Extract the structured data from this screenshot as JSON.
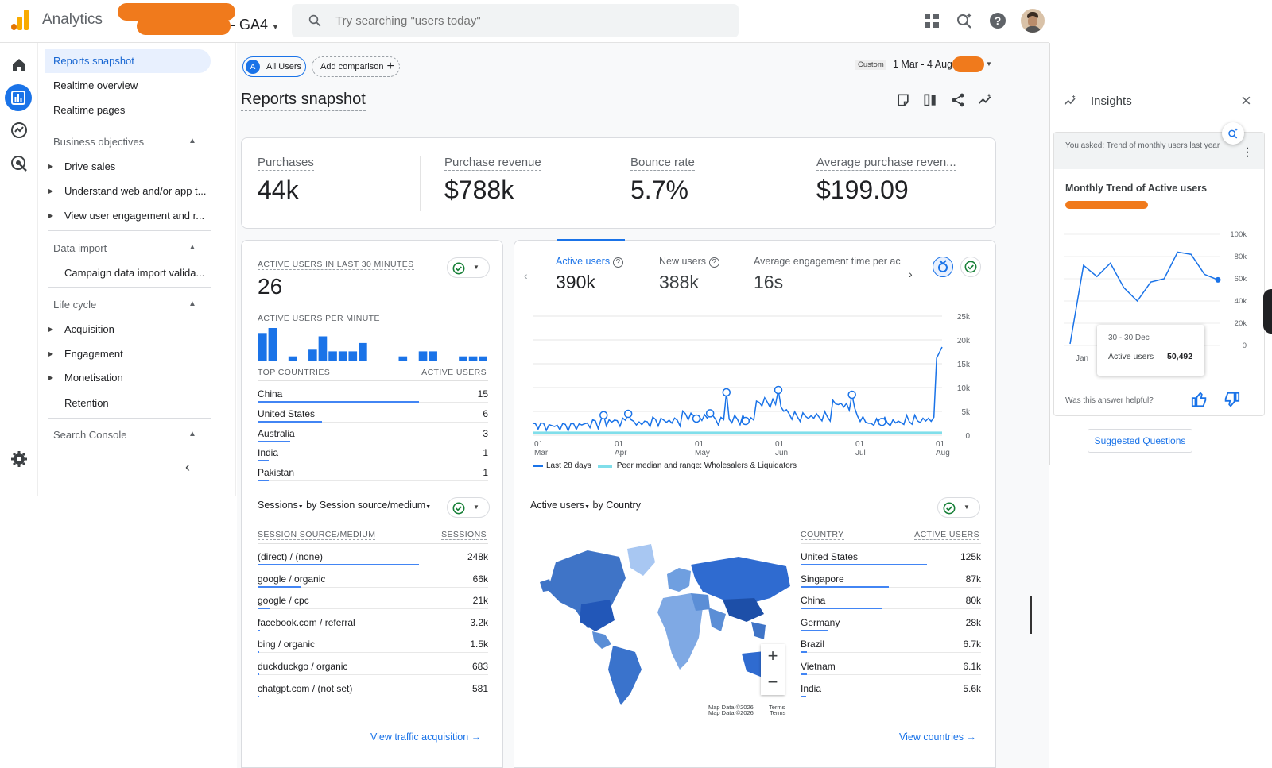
{
  "app": {
    "name": "Analytics",
    "property_suffix": "- GA4",
    "search_placeholder": "Try searching \"users today\""
  },
  "nav": {
    "top_items": [
      "Reports snapshot",
      "Realtime overview",
      "Realtime pages"
    ],
    "sections": [
      {
        "title": "Business objectives",
        "items": [
          "Drive sales",
          "Understand web and/or app t...",
          "View user engagement and r..."
        ]
      },
      {
        "title": "Data import",
        "items": [
          "Campaign data import valida..."
        ]
      },
      {
        "title": "Life cycle",
        "items": [
          "Acquisition",
          "Engagement",
          "Monetisation",
          "Retention"
        ]
      },
      {
        "title": "Search Console",
        "items": []
      }
    ]
  },
  "toolbar": {
    "segment_letter": "A",
    "segment": "All Users",
    "add_comparison": "Add comparison",
    "date_custom": "Custom",
    "date_range": "1 Mar - 4 Aug"
  },
  "page_title": "Reports snapshot",
  "kpis": [
    {
      "label": "Purchases",
      "value": "44k"
    },
    {
      "label": "Purchase revenue",
      "value": "$788k"
    },
    {
      "label": "Bounce rate",
      "value": "5.7%"
    },
    {
      "label": "Average purchase reven...",
      "value": "$199.09"
    }
  ],
  "realtime": {
    "heading": "ACTIVE USERS IN LAST 30 MINUTES",
    "value": "26",
    "per_minute": "ACTIVE USERS PER MINUTE",
    "bars": [
      0.85,
      1.0,
      0,
      0.15,
      0,
      0.35,
      0.75,
      0.3,
      0.3,
      0.3,
      0.55,
      0,
      0,
      0,
      0.15,
      0,
      0.3,
      0.3,
      0,
      0,
      0.15,
      0.15,
      0.15
    ],
    "countries_head": "TOP COUNTRIES",
    "users_head": "ACTIVE USERS",
    "countries": [
      {
        "name": "China",
        "value": "15",
        "pct": 1.0
      },
      {
        "name": "United States",
        "value": "6",
        "pct": 0.4
      },
      {
        "name": "Australia",
        "value": "3",
        "pct": 0.2
      },
      {
        "name": "India",
        "value": "1",
        "pct": 0.07
      },
      {
        "name": "Pakistan",
        "value": "1",
        "pct": 0.07
      }
    ]
  },
  "trend": {
    "tabs": [
      {
        "label": "Active users",
        "value": "390k"
      },
      {
        "label": "New users",
        "value": "388k"
      },
      {
        "label": "Average engagement time per ac",
        "value": "16s"
      }
    ],
    "y_ticks": [
      "25k",
      "20k",
      "15k",
      "10k",
      "5k",
      "0"
    ],
    "x_ticks": [
      {
        "d": "01",
        "m": "Mar"
      },
      {
        "d": "01",
        "m": "Apr"
      },
      {
        "d": "01",
        "m": "May"
      },
      {
        "d": "01",
        "m": "Jun"
      },
      {
        "d": "01",
        "m": "Jul"
      },
      {
        "d": "01",
        "m": "Aug"
      }
    ],
    "legend_last": "Last 28 days",
    "legend_peer": "Peer median and range: Wholesalers & Liquidators"
  },
  "chart_data": [
    {
      "type": "line",
      "series": [
        {
          "name": "Last 28 days",
          "x": [
            "01 Mar",
            "15 Mar",
            "01 Apr",
            "15 Apr",
            "01 May",
            "15 May",
            "01 Jun",
            "15 Jun",
            "01 Jul",
            "15 Jul",
            "01 Aug",
            "04 Aug"
          ],
          "values": [
            2000,
            1800,
            3000,
            2500,
            4500,
            3000,
            9000,
            4000,
            8500,
            2500,
            2800,
            18500
          ]
        }
      ],
      "ylim": [
        0,
        25000
      ]
    },
    {
      "type": "line",
      "title": "Monthly Trend of Active users",
      "series": [
        {
          "name": "Active users",
          "x": [
            "Jan",
            "Feb",
            "Mar",
            "Apr",
            "May",
            "Jun",
            "Jul",
            "Aug",
            "Sep",
            "Oct",
            "Nov",
            "Dec"
          ],
          "values": [
            0,
            72000,
            62000,
            74000,
            52000,
            40000,
            57000,
            60000,
            84000,
            82000,
            64000,
            59000
          ]
        }
      ],
      "ylim": [
        0,
        100000
      ],
      "y_ticks": [
        "100k",
        "80k",
        "60k",
        "40k",
        "20k",
        "0"
      ]
    }
  ],
  "sessions": {
    "title_metric": "Sessions",
    "title_by": "by Session source/medium",
    "col1": "SESSION SOURCE/MEDIUM",
    "col2": "SESSIONS",
    "rows": [
      {
        "name": "(direct) / (none)",
        "value": "248k",
        "pct": 1.0
      },
      {
        "name": "google / organic",
        "value": "66k",
        "pct": 0.27
      },
      {
        "name": "google / cpc",
        "value": "21k",
        "pct": 0.08
      },
      {
        "name": "facebook.com / referral",
        "value": "3.2k",
        "pct": 0.013
      },
      {
        "name": "bing / organic",
        "value": "1.5k",
        "pct": 0.006
      },
      {
        "name": "duckduckgo / organic",
        "value": "683",
        "pct": 0.003
      },
      {
        "name": "chatgpt.com / (not set)",
        "value": "581",
        "pct": 0.002
      }
    ],
    "link": "View traffic acquisition"
  },
  "geo": {
    "title_metric": "Active users",
    "title_by": "by",
    "title_dim": "Country",
    "col1": "COUNTRY",
    "col2": "ACTIVE USERS",
    "rows": [
      {
        "name": "United States",
        "value": "125k",
        "pct": 1.0
      },
      {
        "name": "Singapore",
        "value": "87k",
        "pct": 0.7
      },
      {
        "name": "China",
        "value": "80k",
        "pct": 0.64
      },
      {
        "name": "Germany",
        "value": "28k",
        "pct": 0.22
      },
      {
        "name": "Brazil",
        "value": "6.7k",
        "pct": 0.05
      },
      {
        "name": "Vietnam",
        "value": "6.1k",
        "pct": 0.05
      },
      {
        "name": "India",
        "value": "5.6k",
        "pct": 0.045
      }
    ],
    "map_credit": "Map Data ©2026",
    "terms": "Terms",
    "link": "View countries"
  },
  "insights": {
    "title": "Insights",
    "asked": "You asked: Trend of monthly users last year",
    "card_title": "Monthly Trend of Active users",
    "x_first": "Jan",
    "tooltip_period": "30 - 30 Dec",
    "tooltip_label": "Active users",
    "tooltip_value": "50,492",
    "helpful": "Was this answer helpful?",
    "suggested": "Suggested Questions"
  },
  "colors": {
    "accent": "#1a73e8",
    "brand_orange": "#f9ab00",
    "green": "#188038",
    "redaction": "#f07a1c"
  }
}
